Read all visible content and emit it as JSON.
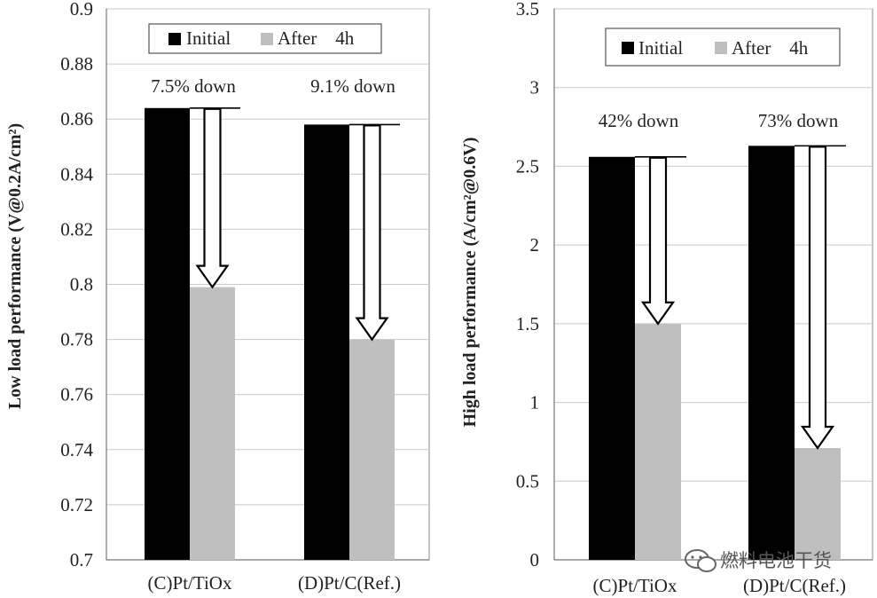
{
  "chart_data": [
    {
      "type": "bar",
      "categories": [
        "(C)Pt/TiOx",
        "(D)Pt/C(Ref.)"
      ],
      "series": [
        {
          "name": "Initial",
          "values": [
            0.864,
            0.858
          ],
          "color": "#000000"
        },
        {
          "name": "After    4h",
          "values": [
            0.799,
            0.78
          ],
          "color": "#bfbfbf"
        }
      ],
      "ylabel": "Low load performance (V@0.2A/cm²)",
      "xlabel": "",
      "ylim": [
        0.7,
        0.9
      ],
      "yticks": [
        "0.7",
        "0.72",
        "0.74",
        "0.76",
        "0.78",
        "0.8",
        "0.82",
        "0.84",
        "0.86",
        "0.88",
        "0.9"
      ],
      "annotations": [
        "7.5% down",
        "9.1% down"
      ],
      "grid": true,
      "legend": "top-center"
    },
    {
      "type": "bar",
      "categories": [
        "(C)Pt/TiOx",
        "(D)Pt/C(Ref.)"
      ],
      "series": [
        {
          "name": "Initial",
          "values": [
            2.56,
            2.63
          ],
          "color": "#000000"
        },
        {
          "name": "After    4h",
          "values": [
            1.5,
            0.71
          ],
          "color": "#bfbfbf"
        }
      ],
      "ylabel": "High load performance (A/cm²@0.6V)",
      "xlabel": "",
      "ylim": [
        0,
        3.5
      ],
      "yticks": [
        "0",
        "0.5",
        "1",
        "1.5",
        "2",
        "2.5",
        "3",
        "3.5"
      ],
      "annotations": [
        "42% down",
        "73% down"
      ],
      "grid": true,
      "legend": "top-center"
    }
  ],
  "watermark": {
    "text": "燃料电池干货",
    "icon": "wechat-icon"
  }
}
